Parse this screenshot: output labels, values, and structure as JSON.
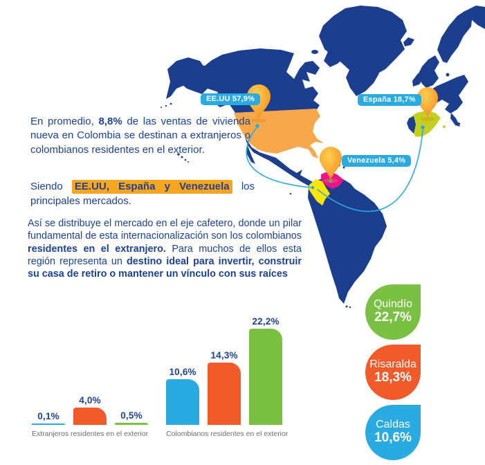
{
  "intro": {
    "p1": {
      "pre": "En promedio, ",
      "bold": "8,8%",
      "post": " de las ventas de vivienda nueva en Colombia se destinan a extranjeros o colombianos residentes en el exterior."
    },
    "p2": {
      "pre": "Siendo ",
      "highlight": "EE.UU, España y Venezuela",
      "post": " los principales mercados."
    },
    "p3": {
      "t1": "Así se distribuye el mercado en el eje cafetero, donde un pilar fundamental de esta internacionalización son los colombianos ",
      "b1": "residentes en el extranjero.",
      "t2": " Para muchos de ellos esta región representa un ",
      "b2": "destino ideal para invertir, construir su casa de retiro o mantener un vínculo con sus raíces"
    }
  },
  "map": {
    "pins": [
      {
        "id": "usa",
        "label": "EE.UU 57,9%"
      },
      {
        "id": "espana",
        "label": "España 18,7%"
      },
      {
        "id": "venezuela",
        "label": "Venezuela 5,4%"
      }
    ]
  },
  "chart_data": [
    {
      "type": "bar",
      "unit": "%",
      "title": "",
      "grid": false,
      "legend": false,
      "ylim": [
        0,
        24
      ],
      "colors": [
        "#29ABE2",
        "#F15A29",
        "#7AC143"
      ],
      "groups": [
        {
          "label": "Extranjeros residentes en el exterior",
          "values": [
            0.1,
            4.0,
            0.5
          ],
          "display": [
            "0,1%",
            "4,0%",
            "0,5%"
          ]
        },
        {
          "label": "Colombianos residentes en el exterior",
          "values": [
            10.6,
            14.3,
            22.2
          ],
          "display": [
            "10,6%",
            "14,3%",
            "22,2%"
          ]
        }
      ]
    },
    {
      "type": "stat-bubbles",
      "items": [
        {
          "name": "Quindío",
          "value": "22,7%",
          "color": "#7AC143"
        },
        {
          "name": "Risaralda",
          "value": "18,3%",
          "color": "#F15A29"
        },
        {
          "name": "Caldas",
          "value": "10,6%",
          "color": "#29ABE2"
        }
      ]
    }
  ],
  "colors": {
    "map_land": "#1B3F8E",
    "usa_fill": "#F7A84B",
    "spain_fill": "#C3D021",
    "colombia_fill": "#FFE500",
    "venezuela_fill": "#EB148D",
    "arc": "#29ABE2",
    "badge_bg": "#29ABE2",
    "pin_light": "#FFD04F",
    "pin_dark": "#F68B1F",
    "pin_shadow": "#DE8A12",
    "text_navy": "#1B4297",
    "highlight_orange": "#F9A51F",
    "label_gray": "#6E6E6E"
  }
}
